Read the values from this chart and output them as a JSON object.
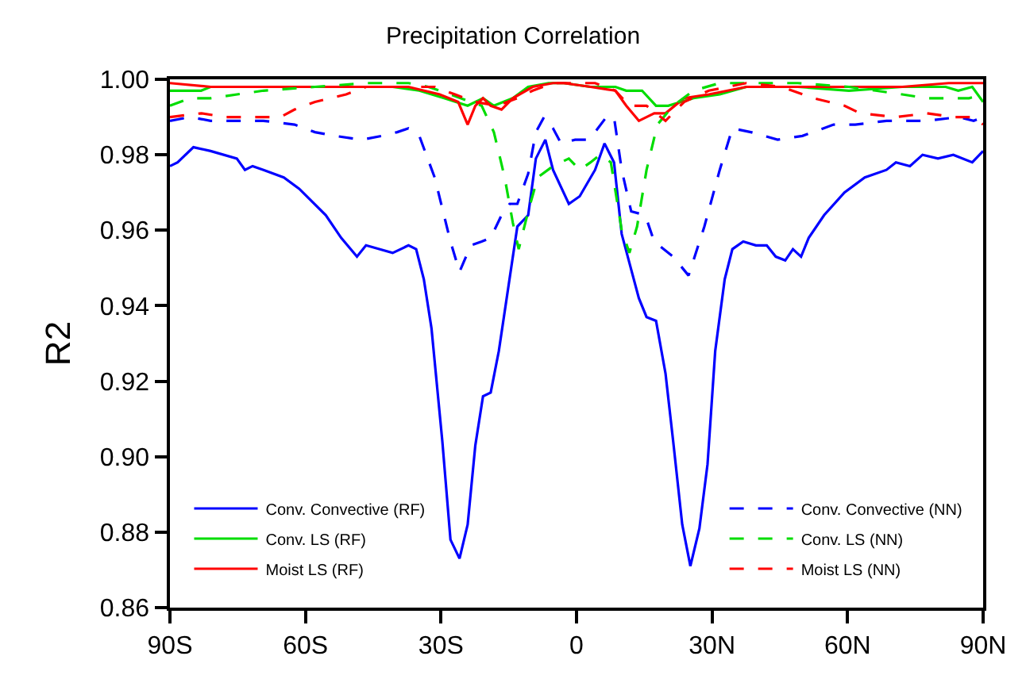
{
  "chart_data": {
    "type": "line",
    "title": "Precipitation Correlation",
    "ylabel": "R2",
    "xlim": [
      -90,
      90
    ],
    "xticks": [
      {
        "value": -90,
        "label": "90S"
      },
      {
        "value": -60,
        "label": "60S"
      },
      {
        "value": -30,
        "label": "30S"
      },
      0,
      {
        "value": 30,
        "label": "30N"
      },
      {
        "value": 60,
        "label": "60N"
      },
      {
        "value": 90,
        "label": "90N"
      }
    ],
    "ylim": [
      0.86,
      1.0
    ],
    "yticks": [
      0.86,
      0.88,
      {
        "value": 0.9,
        "label": "0.90"
      },
      0.92,
      0.94,
      0.96,
      0.98,
      {
        "value": 1.0,
        "label": "1.00"
      }
    ],
    "legend": "bottom",
    "marker": "none",
    "series": [
      {
        "name": "Conv. Convective (RF)",
        "color": "#0000ff",
        "line_style": "solid",
        "x": [
          -90,
          -88.3,
          -84.8,
          -81.0,
          -75.2,
          -73.4,
          -71.7,
          -69.3,
          -64.8,
          -61.4,
          -55.5,
          -52.1,
          -48.6,
          -46.6,
          -40.7,
          -37.2,
          -35.5,
          -33.8,
          -32.1,
          -29.7,
          -27.9,
          -25.9,
          -24.1,
          -22.4,
          -20.7,
          -19.0,
          -17.2,
          -13.1,
          -10.7,
          -9.0,
          -6.9,
          -5.2,
          -1.7,
          0.7,
          4.1,
          6.2,
          8.3,
          10.0,
          13.8,
          15.5,
          17.6,
          19.7,
          21.4,
          23.4,
          25.2,
          27.2,
          29.0,
          30.7,
          32.8,
          34.5,
          36.9,
          39.7,
          42.1,
          44.1,
          46.2,
          47.9,
          49.7,
          51.4,
          54.8,
          59.3,
          63.8,
          68.6,
          70.7,
          73.8,
          76.6,
          80.0,
          83.4,
          87.6,
          90
        ],
        "values": [
          0.977,
          0.978,
          0.982,
          0.981,
          0.979,
          0.976,
          0.977,
          0.976,
          0.974,
          0.971,
          0.964,
          0.958,
          0.953,
          0.956,
          0.954,
          0.956,
          0.955,
          0.947,
          0.934,
          0.904,
          0.878,
          0.873,
          0.882,
          0.903,
          0.916,
          0.917,
          0.928,
          0.961,
          0.964,
          0.979,
          0.984,
          0.976,
          0.967,
          0.969,
          0.976,
          0.983,
          0.978,
          0.959,
          0.942,
          0.937,
          0.936,
          0.922,
          0.904,
          0.882,
          0.871,
          0.881,
          0.898,
          0.928,
          0.947,
          0.955,
          0.957,
          0.956,
          0.956,
          0.953,
          0.952,
          0.955,
          0.953,
          0.958,
          0.964,
          0.97,
          0.974,
          0.976,
          0.978,
          0.977,
          0.98,
          0.979,
          0.98,
          0.978,
          0.981
        ]
      },
      {
        "name": "Conv. LS (RF)",
        "color": "#00dd00",
        "line_style": "solid",
        "x": [
          -90,
          -83.1,
          -81.0,
          -69.3,
          -57.9,
          -46.6,
          -40.7,
          -34.8,
          -29.3,
          -24.1,
          -20.7,
          -18.3,
          -14.1,
          -10.7,
          -6.2,
          -2.8,
          3.1,
          8.6,
          11.0,
          14.5,
          17.6,
          20.3,
          25.9,
          31.7,
          37.6,
          49.0,
          60.3,
          72.1,
          81.7,
          84.5,
          87.6,
          90
        ],
        "values": [
          0.997,
          0.997,
          0.998,
          0.998,
          0.998,
          0.998,
          0.998,
          0.997,
          0.995,
          0.993,
          0.995,
          0.993,
          0.995,
          0.998,
          0.999,
          0.999,
          0.998,
          0.998,
          0.997,
          0.997,
          0.993,
          0.993,
          0.995,
          0.996,
          0.998,
          0.998,
          0.997,
          0.998,
          0.998,
          0.997,
          0.998,
          0.994
        ]
      },
      {
        "name": "Moist LS (RF)",
        "color": "#ff0000",
        "line_style": "solid",
        "x": [
          -90,
          -81.0,
          -69.3,
          -57.9,
          -46.6,
          -37.2,
          -30.3,
          -26.2,
          -24.1,
          -22.4,
          -20.7,
          -19.0,
          -16.6,
          -14.1,
          -9.7,
          -5.2,
          -2.8,
          3.1,
          8.6,
          11.0,
          13.8,
          17.2,
          19.7,
          23.8,
          29.3,
          37.6,
          54.8,
          72.1,
          82.4,
          90
        ],
        "values": [
          0.999,
          0.998,
          0.998,
          0.998,
          0.998,
          0.998,
          0.996,
          0.994,
          0.988,
          0.993,
          0.995,
          0.993,
          0.992,
          0.995,
          0.998,
          0.999,
          0.999,
          0.998,
          0.997,
          0.993,
          0.989,
          0.991,
          0.991,
          0.995,
          0.996,
          0.998,
          0.998,
          0.998,
          0.999,
          0.999
        ]
      },
      {
        "name": "Conv. Convective (NN)",
        "color": "#0000ff",
        "line_style": "dashed",
        "x": [
          -90,
          -85.5,
          -81.0,
          -75.2,
          -69.3,
          -62.4,
          -57.9,
          -53.4,
          -47.6,
          -43.1,
          -39.7,
          -37.2,
          -34.8,
          -31.4,
          -27.9,
          -25.9,
          -23.4,
          -21.0,
          -19.0,
          -16.6,
          -14.8,
          -13.1,
          -10.7,
          -9.0,
          -7.2,
          -5.2,
          -3.4,
          -0.3,
          2.4,
          4.1,
          6.6,
          8.3,
          10.0,
          12.1,
          15.2,
          17.2,
          21.4,
          24.8,
          28.3,
          31.7,
          34.5,
          38.6,
          44.5,
          50.0,
          56.9,
          61.7,
          68.6,
          77.6,
          84.5,
          87.9,
          90
        ],
        "values": [
          0.989,
          0.99,
          0.989,
          0.989,
          0.989,
          0.988,
          0.986,
          0.985,
          0.984,
          0.985,
          0.986,
          0.987,
          0.985,
          0.974,
          0.957,
          0.949,
          0.956,
          0.957,
          0.958,
          0.964,
          0.967,
          0.967,
          0.975,
          0.986,
          0.99,
          0.987,
          0.983,
          0.984,
          0.984,
          0.986,
          0.99,
          0.99,
          0.976,
          0.965,
          0.964,
          0.957,
          0.953,
          0.948,
          0.961,
          0.976,
          0.987,
          0.986,
          0.984,
          0.985,
          0.988,
          0.988,
          0.989,
          0.989,
          0.99,
          0.989,
          0.99
        ]
      },
      {
        "name": "Conv. LS (NN)",
        "color": "#00dd00",
        "line_style": "dashed",
        "x": [
          -90,
          -85.5,
          -81.0,
          -69.3,
          -57.9,
          -46.6,
          -37.2,
          -32.8,
          -27.9,
          -23.4,
          -21.0,
          -18.3,
          -15.9,
          -14.1,
          -12.8,
          -10.7,
          -8.6,
          -5.2,
          -1.7,
          0.7,
          3.1,
          5.2,
          7.6,
          10.0,
          11.7,
          13.4,
          15.5,
          17.9,
          21.4,
          25.9,
          31.7,
          37.6,
          49.0,
          60.3,
          66.2,
          72.1,
          77.6,
          84.5,
          86.9,
          90
        ],
        "values": [
          0.993,
          0.995,
          0.995,
          0.997,
          0.998,
          0.999,
          0.999,
          0.998,
          0.996,
          0.994,
          0.993,
          0.986,
          0.974,
          0.962,
          0.955,
          0.965,
          0.974,
          0.977,
          0.979,
          0.976,
          0.978,
          0.98,
          0.978,
          0.96,
          0.954,
          0.961,
          0.976,
          0.988,
          0.993,
          0.997,
          0.999,
          0.999,
          0.999,
          0.998,
          0.997,
          0.996,
          0.995,
          0.995,
          0.995,
          0.996
        ]
      },
      {
        "name": "Moist LS (NN)",
        "color": "#ff0000",
        "line_style": "dashed",
        "x": [
          -90,
          -83.1,
          -77.6,
          -69.3,
          -65.5,
          -62.4,
          -57.9,
          -51.0,
          -46.6,
          -37.2,
          -31.4,
          -26.9,
          -22.4,
          -17.6,
          -13.1,
          -9.7,
          -5.2,
          -2.8,
          4.1,
          8.6,
          11.7,
          15.5,
          19.7,
          23.8,
          29.3,
          37.6,
          45.5,
          52.4,
          59.3,
          62.8,
          70.7,
          77.6,
          83.4,
          87.9,
          90
        ],
        "values": [
          0.99,
          0.991,
          0.99,
          0.99,
          0.99,
          0.992,
          0.994,
          0.996,
          0.998,
          0.998,
          0.998,
          0.996,
          0.994,
          0.993,
          0.995,
          0.997,
          0.999,
          0.999,
          0.999,
          0.997,
          0.993,
          0.993,
          0.989,
          0.994,
          0.997,
          0.999,
          0.998,
          0.995,
          0.993,
          0.991,
          0.99,
          0.991,
          0.99,
          0.99,
          0.988
        ]
      }
    ]
  }
}
